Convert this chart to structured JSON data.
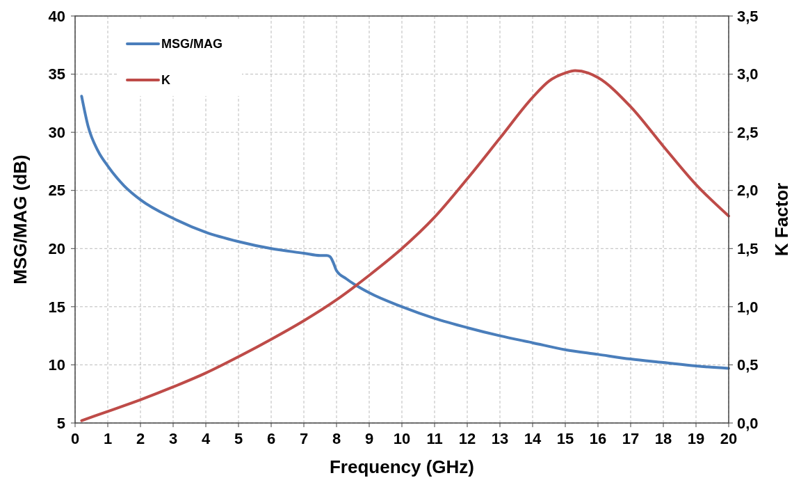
{
  "chart_data": {
    "type": "line",
    "xlabel": "Frequency (GHz)",
    "ylabel": "MSG/MAG  (dB)",
    "y2label": "K  Factor",
    "xlim": [
      0,
      20
    ],
    "xticks": [
      0,
      1,
      2,
      3,
      4,
      5,
      6,
      7,
      8,
      9,
      10,
      11,
      12,
      13,
      14,
      15,
      16,
      17,
      18,
      19,
      20
    ],
    "ylim": [
      5,
      40
    ],
    "yticks": [
      5,
      10,
      15,
      20,
      25,
      30,
      35,
      40
    ],
    "y2lim": [
      0,
      3.5
    ],
    "y2ticks": [
      {
        "value": 0,
        "label": "0,0"
      },
      {
        "value": 0.5,
        "label": "0,5"
      },
      {
        "value": 1,
        "label": "1,0"
      },
      {
        "value": 1.5,
        "label": "1,5"
      },
      {
        "value": 2,
        "label": "2,0"
      },
      {
        "value": 2.5,
        "label": "2,5"
      },
      {
        "value": 3,
        "label": "3,0"
      },
      {
        "value": 3.5,
        "label": "3,5"
      }
    ],
    "grid": true,
    "legend": "top left",
    "line_style": "solid",
    "marker": "none",
    "series": [
      {
        "name": "MSG/MAG",
        "color": "#4a7ebb",
        "x": [
          0.2,
          0.4,
          0.7,
          1,
          1.5,
          2,
          3,
          4,
          5,
          6,
          7,
          7.5,
          7.7,
          7.8,
          7.9,
          8.0,
          8.3,
          9,
          10,
          11,
          12,
          13,
          14,
          15,
          16,
          17,
          18,
          19,
          20
        ],
        "values": [
          33.1,
          30.5,
          28.4,
          27.1,
          25.4,
          24.2,
          22.6,
          21.4,
          20.6,
          20.0,
          19.6,
          19.4,
          19.4,
          19.3,
          18.8,
          18.1,
          17.4,
          16.2,
          15.0,
          14.0,
          13.2,
          12.5,
          11.9,
          11.3,
          10.9,
          10.5,
          10.2,
          9.9,
          9.7
        ]
      },
      {
        "name": "K",
        "color": "#be4b48",
        "axis": "y2",
        "x": [
          0.2,
          1,
          2,
          3,
          4,
          5,
          6,
          7,
          8,
          9,
          10,
          11,
          12,
          13,
          14,
          14.5,
          15,
          15.3,
          15.7,
          16,
          17,
          18,
          19,
          20
        ],
        "values": [
          0.02,
          0.1,
          0.2,
          0.31,
          0.43,
          0.57,
          0.72,
          0.88,
          1.06,
          1.27,
          1.5,
          1.77,
          2.1,
          2.45,
          2.8,
          2.94,
          3.01,
          3.03,
          3.01,
          2.97,
          2.72,
          2.38,
          2.05,
          1.78
        ]
      }
    ]
  }
}
